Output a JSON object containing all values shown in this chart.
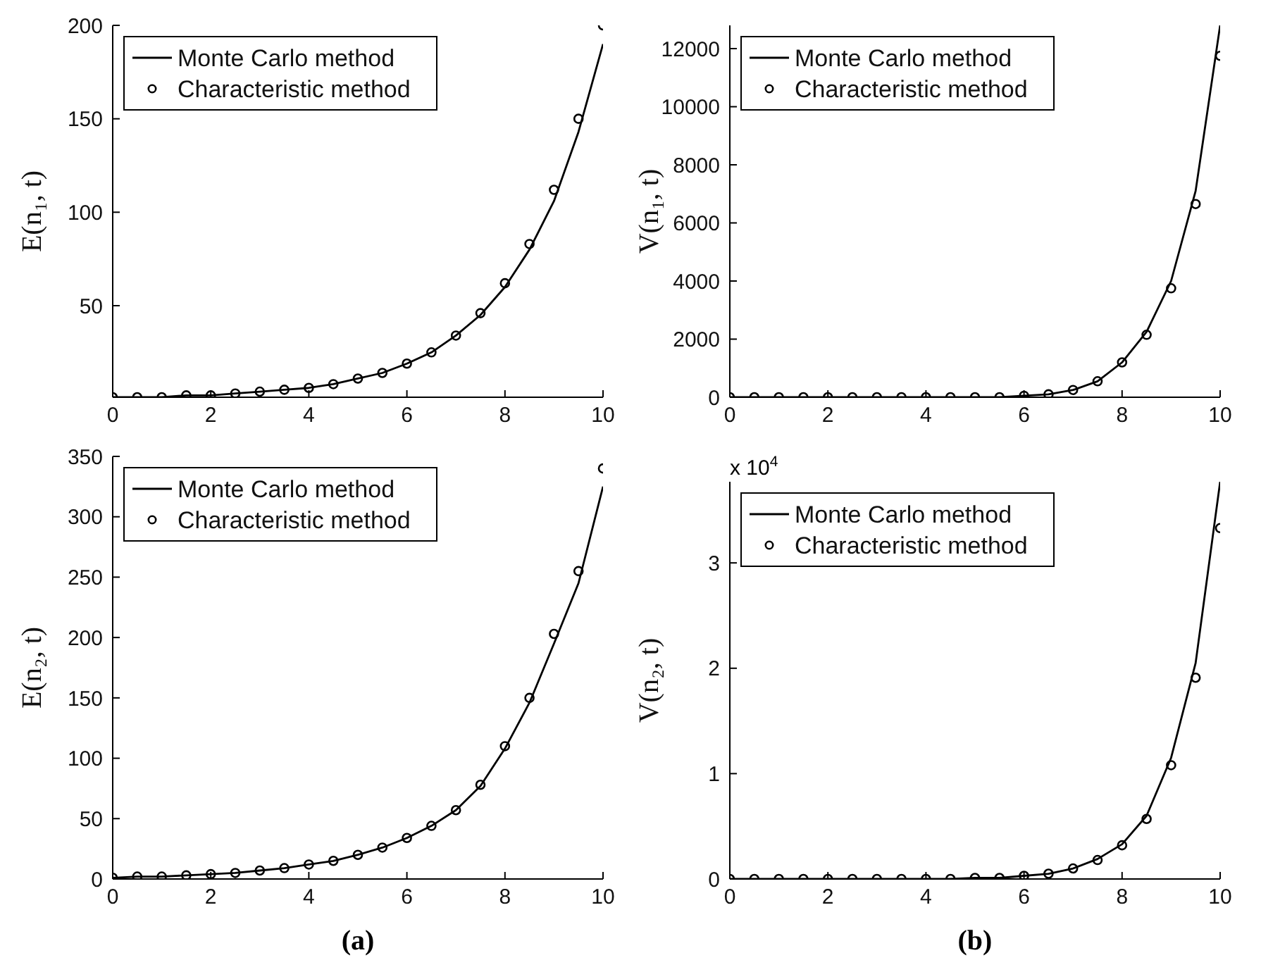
{
  "chart_data": [
    {
      "type": "line",
      "ylabel": "E(n₁, t)",
      "xlim": [
        0,
        10
      ],
      "xticks": [
        0,
        2,
        4,
        6,
        8,
        10
      ],
      "ylim": [
        1,
        200
      ],
      "yticks": [
        50,
        100,
        150,
        200
      ],
      "legend": "top left",
      "series": [
        {
          "name": "Monte Carlo method",
          "color": "#000000",
          "marker": "none",
          "line_style": "solid",
          "x": [
            0,
            0.5,
            1,
            1.5,
            2,
            2.5,
            3,
            3.5,
            4,
            4.5,
            5,
            5.5,
            6,
            6.5,
            7,
            7.5,
            8,
            8.5,
            9,
            9.5,
            10
          ],
          "values": [
            1,
            1,
            1,
            2,
            2,
            3,
            4,
            5,
            6,
            8,
            11,
            14,
            19,
            25,
            34,
            45,
            60,
            80,
            106,
            143,
            190
          ]
        },
        {
          "name": "Characteristic method",
          "type": "scatter",
          "color": "#000000",
          "marker": "circle",
          "x": [
            0,
            0.5,
            1,
            1.5,
            2,
            2.5,
            3,
            3.5,
            4,
            4.5,
            5,
            5.5,
            6,
            6.5,
            7,
            7.5,
            8,
            8.5,
            9,
            9.5,
            10
          ],
          "values": [
            1,
            1,
            1,
            2,
            2,
            3,
            4,
            5,
            6,
            8,
            11,
            14,
            19,
            25,
            34,
            46,
            62,
            83,
            112,
            150,
            200
          ]
        }
      ]
    },
    {
      "type": "line",
      "ylabel": "V(n₁, t)",
      "xlim": [
        0,
        10
      ],
      "xticks": [
        0,
        2,
        4,
        6,
        8,
        10
      ],
      "ylim": [
        0,
        12800
      ],
      "yticks": [
        0,
        2000,
        4000,
        6000,
        8000,
        10000,
        12000
      ],
      "legend": "top left",
      "series": [
        {
          "name": "Monte Carlo method",
          "color": "#000000",
          "marker": "none",
          "line_style": "solid",
          "x": [
            0,
            0.5,
            1,
            1.5,
            2,
            2.5,
            3,
            3.5,
            4,
            4.5,
            5,
            5.5,
            6,
            6.5,
            7,
            7.5,
            8,
            8.5,
            9,
            9.5,
            10
          ],
          "values": [
            0,
            0,
            0,
            0,
            0,
            0,
            0,
            0,
            0,
            0,
            0,
            0,
            50,
            100,
            250,
            550,
            1200,
            2250,
            4000,
            7100,
            12800
          ]
        },
        {
          "name": "Characteristic method",
          "type": "scatter",
          "color": "#000000",
          "marker": "circle",
          "x": [
            0,
            0.5,
            1,
            1.5,
            2,
            2.5,
            3,
            3.5,
            4,
            4.5,
            5,
            5.5,
            6,
            6.5,
            7,
            7.5,
            8,
            8.5,
            9,
            9.5,
            10
          ],
          "values": [
            0,
            0,
            0,
            0,
            0,
            0,
            0,
            0,
            0,
            0,
            0,
            0,
            50,
            100,
            250,
            550,
            1200,
            2150,
            3750,
            6650,
            11750
          ]
        }
      ]
    },
    {
      "type": "line",
      "ylabel": "E(n₂, t)",
      "xlim": [
        0,
        10
      ],
      "xticks": [
        0,
        2,
        4,
        6,
        8,
        10
      ],
      "ylim": [
        0,
        350
      ],
      "yticks": [
        0,
        50,
        100,
        150,
        200,
        250,
        300,
        350
      ],
      "legend": "top left",
      "annotations": [
        "(a)"
      ],
      "series": [
        {
          "name": "Monte Carlo method",
          "color": "#000000",
          "marker": "none",
          "line_style": "solid",
          "x": [
            0,
            0.5,
            1,
            1.5,
            2,
            2.5,
            3,
            3.5,
            4,
            4.5,
            5,
            5.5,
            6,
            6.5,
            7,
            7.5,
            8,
            8.5,
            9,
            9.5,
            10
          ],
          "values": [
            1,
            2,
            2,
            3,
            4,
            5,
            7,
            9,
            12,
            15,
            20,
            26,
            34,
            44,
            57,
            77,
            108,
            146,
            195,
            245,
            325
          ]
        },
        {
          "name": "Characteristic method",
          "type": "scatter",
          "color": "#000000",
          "marker": "circle",
          "x": [
            0,
            0.5,
            1,
            1.5,
            2,
            2.5,
            3,
            3.5,
            4,
            4.5,
            5,
            5.5,
            6,
            6.5,
            7,
            7.5,
            8,
            8.5,
            9,
            9.5,
            10
          ],
          "values": [
            1,
            2,
            2,
            3,
            4,
            5,
            7,
            9,
            12,
            15,
            20,
            26,
            34,
            44,
            57,
            78,
            110,
            150,
            203,
            255,
            340
          ]
        }
      ]
    },
    {
      "type": "line",
      "ylabel": "V(n₂, t)",
      "xlim": [
        0,
        10
      ],
      "xticks": [
        0,
        2,
        4,
        6,
        8,
        10
      ],
      "ylim": [
        0,
        3.77
      ],
      "yticks": [
        0,
        1,
        2,
        3
      ],
      "legend": "top left",
      "annotations": [
        "x 10$^{4}$",
        "(b)"
      ],
      "series": [
        {
          "name": "Monte Carlo method",
          "color": "#000000",
          "marker": "none",
          "line_style": "solid",
          "x": [
            0,
            0.5,
            1,
            1.5,
            2,
            2.5,
            3,
            3.5,
            4,
            4.5,
            5,
            5.5,
            6,
            6.5,
            7,
            7.5,
            8,
            8.5,
            9,
            9.5,
            10
          ],
          "values": [
            0,
            0,
            0,
            0,
            0,
            0,
            0,
            0,
            0,
            0,
            0.01,
            0.01,
            0.03,
            0.05,
            0.1,
            0.19,
            0.33,
            0.6,
            1.15,
            2.05,
            3.77
          ]
        },
        {
          "name": "Characteristic method",
          "type": "scatter",
          "color": "#000000",
          "marker": "circle",
          "x": [
            0,
            0.5,
            1,
            1.5,
            2,
            2.5,
            3,
            3.5,
            4,
            4.5,
            5,
            5.5,
            6,
            6.5,
            7,
            7.5,
            8,
            8.5,
            9,
            9.5,
            10
          ],
          "values": [
            0,
            0,
            0,
            0,
            0,
            0,
            0,
            0,
            0,
            0,
            0.01,
            0.01,
            0.03,
            0.05,
            0.1,
            0.18,
            0.32,
            0.57,
            1.08,
            1.91,
            3.33
          ]
        }
      ]
    }
  ]
}
